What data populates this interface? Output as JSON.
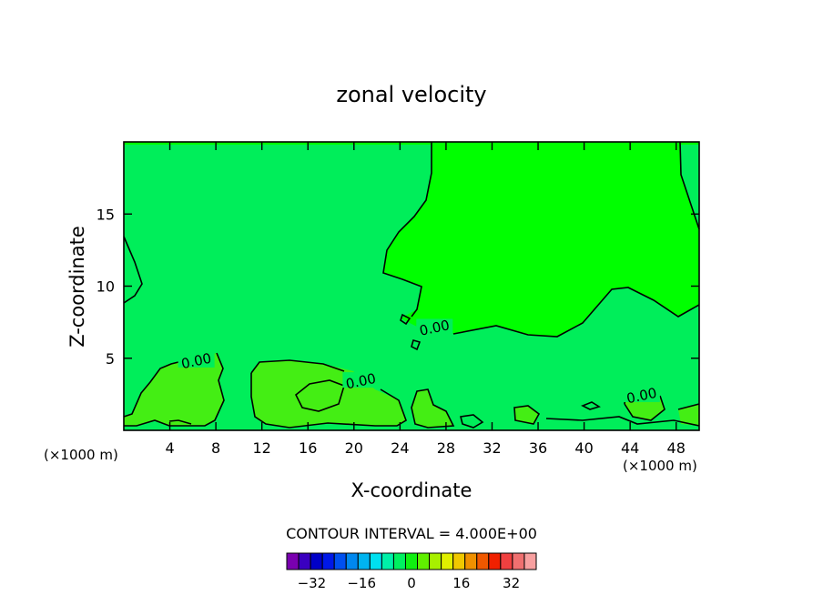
{
  "chart_data": {
    "type": "contour",
    "title": "zonal velocity",
    "xlabel": "X-coordinate",
    "ylabel": "Z-coordinate",
    "xlim": [
      0,
      50
    ],
    "ylim": [
      0,
      20
    ],
    "x_ticks": [
      4,
      8,
      12,
      16,
      20,
      24,
      28,
      32,
      36,
      40,
      44,
      48
    ],
    "y_ticks": [
      5,
      10,
      15
    ],
    "x_unit_left": "(×1000 m)",
    "x_unit_right": "(×1000 m)",
    "contour_labels": [
      {
        "text": "0.00",
        "x": 6.3,
        "y": 4.8
      },
      {
        "text": "0.00",
        "x": 20.6,
        "y": 3.4
      },
      {
        "text": "0.00",
        "x": 27.0,
        "y": 7.1
      },
      {
        "text": "0.00",
        "x": 45.0,
        "y": 2.4
      }
    ],
    "contour_interval": "CONTOUR INTERVAL = 4.000E+00",
    "colorbar": {
      "tick_labels": [
        "−32",
        "−16",
        "0",
        "16",
        "32"
      ],
      "tick_values": [
        -32,
        -16,
        0,
        16,
        32
      ],
      "min": -40,
      "max": 40,
      "colors": [
        "#7a00b0",
        "#3a00c0",
        "#0000c8",
        "#0018e8",
        "#0050f0",
        "#0088f0",
        "#00b4f0",
        "#00e0f0",
        "#00f0a8",
        "#00f060",
        "#10f010",
        "#60f000",
        "#a8f000",
        "#e0f000",
        "#f0c800",
        "#f09000",
        "#f05800",
        "#f02000",
        "#f04040",
        "#f07070",
        "#f8a0a0"
      ]
    },
    "fill_colors": {
      "base": "#00ff00",
      "negative": "#00ee5a",
      "positive_light": "#44ee14"
    }
  }
}
